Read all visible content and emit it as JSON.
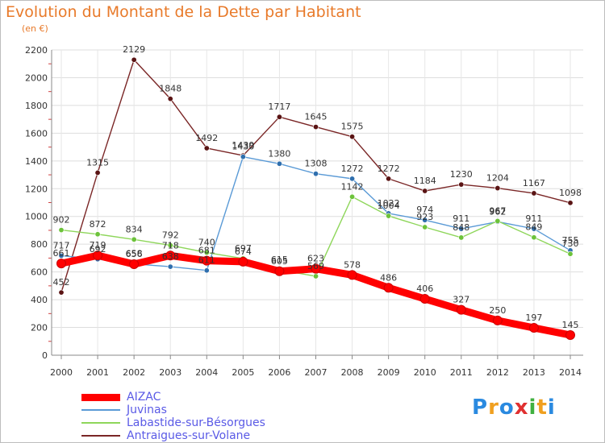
{
  "page": {
    "title": "Evolution du Montant de la Dette par Habitant",
    "unit": "(en €)",
    "logo_letters": [
      {
        "ch": "P",
        "color": "#2a8ae0"
      },
      {
        "ch": "r",
        "color": "#f0a020"
      },
      {
        "ch": "o",
        "color": "#2a8ae0"
      },
      {
        "ch": "x",
        "color": "#e03030"
      },
      {
        "ch": "i",
        "color": "#40b040"
      },
      {
        "ch": "t",
        "color": "#f0a020"
      },
      {
        "ch": "i",
        "color": "#2a8ae0"
      }
    ]
  },
  "chart_data": {
    "type": "line",
    "title": "Evolution du Montant de la Dette par Habitant",
    "ylabel": "(en €)",
    "xlabel": "",
    "x": [
      "2000",
      "2001",
      "2002",
      "2003",
      "2004",
      "2005",
      "2006",
      "2007",
      "2008",
      "2009",
      "2010",
      "2011",
      "2012",
      "2013",
      "2014"
    ],
    "ylim": [
      0,
      2200
    ],
    "yticks": [
      0,
      200,
      400,
      600,
      800,
      1000,
      1200,
      1400,
      1600,
      1800,
      2000,
      2200
    ],
    "grid": true,
    "legend_placement": "bottom-left",
    "series": [
      {
        "name": "Antraigues-sur-Volane",
        "color": "#7a2626",
        "marker": "#5a1414",
        "values": [
          452,
          1315,
          2129,
          1848,
          1492,
          1439,
          1717,
          1645,
          1575,
          1272,
          1184,
          1230,
          1204,
          1167,
          1098
        ]
      },
      {
        "name": "Juvinas",
        "color": "#5a9ad6",
        "marker": "#2f6fae",
        "values": [
          717,
          692,
          658,
          638,
          611,
          1430,
          1380,
          1308,
          1272,
          1022,
          974,
          911,
          962,
          911,
          755
        ]
      },
      {
        "name": "Labastide-sur-Bésorgues",
        "color": "#8ed65a",
        "marker": "#6cc23a",
        "values": [
          902,
          872,
          834,
          792,
          740,
          697,
          615,
          569,
          1142,
          1004,
          923,
          848,
          967,
          849,
          730
        ]
      },
      {
        "name": "AIZAC",
        "color": "#ff0000",
        "marker": "#ff0000",
        "values": [
          661,
          719,
          656,
          718,
          681,
          674,
          605,
          623,
          578,
          486,
          406,
          327,
          250,
          197,
          145
        ]
      }
    ],
    "labels": {
      "Antraigues-sur-Volane": [
        "452",
        "1315",
        "2129",
        "1848",
        "1492",
        "1439",
        "1717",
        "1645",
        "1575",
        "1272",
        "1184",
        "1230",
        "1204",
        "1167",
        "1098"
      ],
      "Juvinas": [
        "717",
        "692",
        "658",
        "638",
        "611",
        "1430",
        "1380",
        "1308",
        "1272",
        "1022",
        "974",
        "911",
        "962",
        "911",
        "755"
      ],
      "Labastide-sur-Bésorgues": [
        "902",
        "872",
        "834",
        "792",
        "740",
        "697",
        "615",
        "569",
        "1142",
        "1004",
        "923",
        "848",
        "967",
        "849",
        "730"
      ],
      "AIZAC": [
        "661",
        "719",
        "656",
        "718",
        "681",
        "674",
        "605",
        "623",
        "578",
        "486",
        "406",
        "327",
        "250",
        "197",
        "145"
      ]
    }
  },
  "legend": {
    "items": [
      {
        "name": "AIZAC",
        "color": "#ff0000"
      },
      {
        "name": "Juvinas",
        "color": "#5a9ad6"
      },
      {
        "name": "Labastide-sur-Bésorgues",
        "color": "#8ed65a"
      },
      {
        "name": "Antraigues-sur-Volane",
        "color": "#7a2626"
      }
    ]
  }
}
